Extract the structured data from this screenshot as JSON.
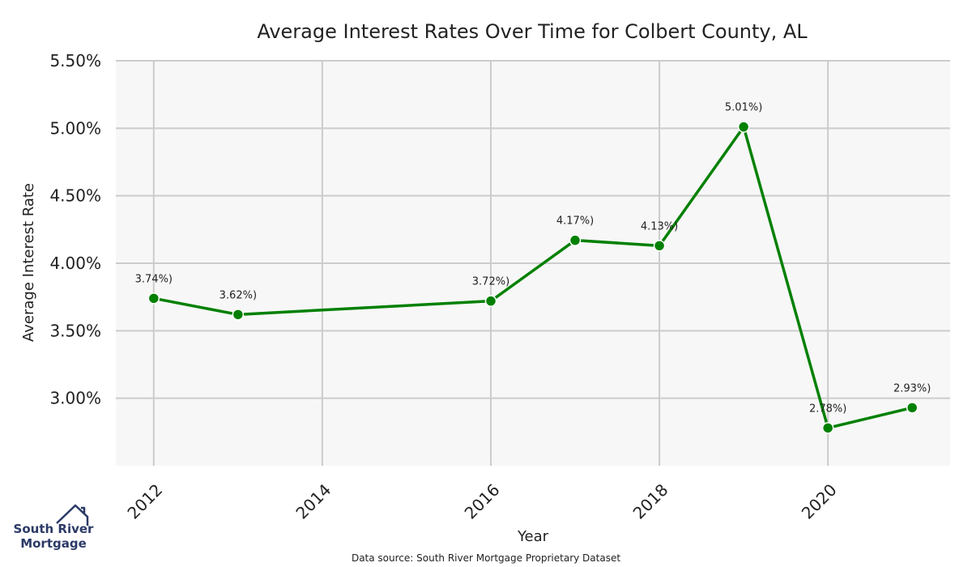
{
  "colors": {
    "line": "#008000",
    "plot_bg": "#f7f7f7",
    "grid": "#cccccc",
    "logo": "#2b3a67"
  },
  "logo": {
    "line1": "South River",
    "line2": "Mortgage"
  },
  "source_note": "Data source: South River Mortgage Proprietary Dataset",
  "chart_data": {
    "type": "line",
    "title": "Average Interest Rates Over Time for Colbert County, AL",
    "xlabel": "Year",
    "ylabel": "Average Interest Rate",
    "xlim": [
      2011.55,
      2021.45
    ],
    "ylim": [
      2.5,
      5.5
    ],
    "x_ticks": [
      2012,
      2014,
      2016,
      2018,
      2020
    ],
    "y_ticks": [
      3.0,
      3.5,
      4.0,
      4.5,
      5.0,
      5.5
    ],
    "y_tick_labels": [
      "3.00%",
      "3.50%",
      "4.00%",
      "4.50%",
      "5.00%",
      "5.50%"
    ],
    "grid": true,
    "series": [
      {
        "x": [
          2012,
          2013,
          2016,
          2017,
          2018,
          2019,
          2020,
          2021
        ],
        "values": [
          3.74,
          3.62,
          3.72,
          4.17,
          4.13,
          5.01,
          2.78,
          2.93
        ],
        "labels": [
          "3.74%)",
          "3.62%)",
          "3.72%)",
          "4.17%)",
          "4.13%)",
          "5.01%)",
          "2.78%)",
          "2.93%)"
        ]
      }
    ]
  }
}
